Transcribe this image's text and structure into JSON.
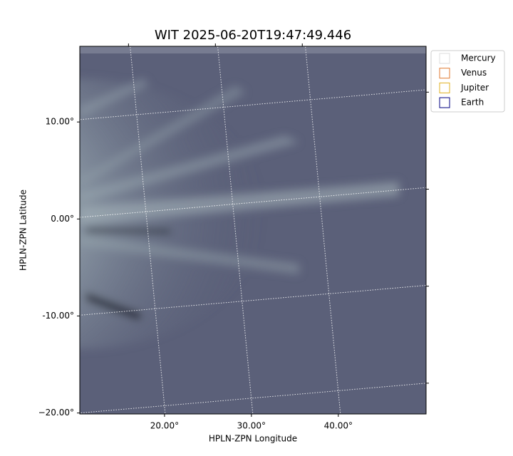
{
  "chart_data": {
    "type": "image",
    "title": "WIT 2025-06-20T19:47:49.446",
    "x_label": "HPLN-ZPN Longitude",
    "y_label": "HPLN-ZPN Latitude",
    "xlim": [
      10.25,
      50.1
    ],
    "ylim": [
      -20.1,
      17.8
    ],
    "xticks": [
      {
        "value": 20,
        "label": "20.00°"
      },
      {
        "value": 30,
        "label": "30.00°"
      },
      {
        "value": 40,
        "label": "40.00°"
      }
    ],
    "yticks": [
      {
        "value": 10,
        "label": "10.00°"
      },
      {
        "value": 0,
        "label": "0.00°"
      },
      {
        "value": -10,
        "label": "-10.00°"
      },
      {
        "value": -20,
        "label": "−20.00°"
      }
    ],
    "grid": true,
    "legend": "upper-right-outside",
    "series": [
      {
        "name": "Mercury",
        "color": "#dddddd"
      },
      {
        "name": "Venus",
        "color": "#e07a30"
      },
      {
        "name": "Jupiter",
        "color": "#e0b020"
      },
      {
        "name": "Earth",
        "color": "#000080"
      }
    ]
  }
}
